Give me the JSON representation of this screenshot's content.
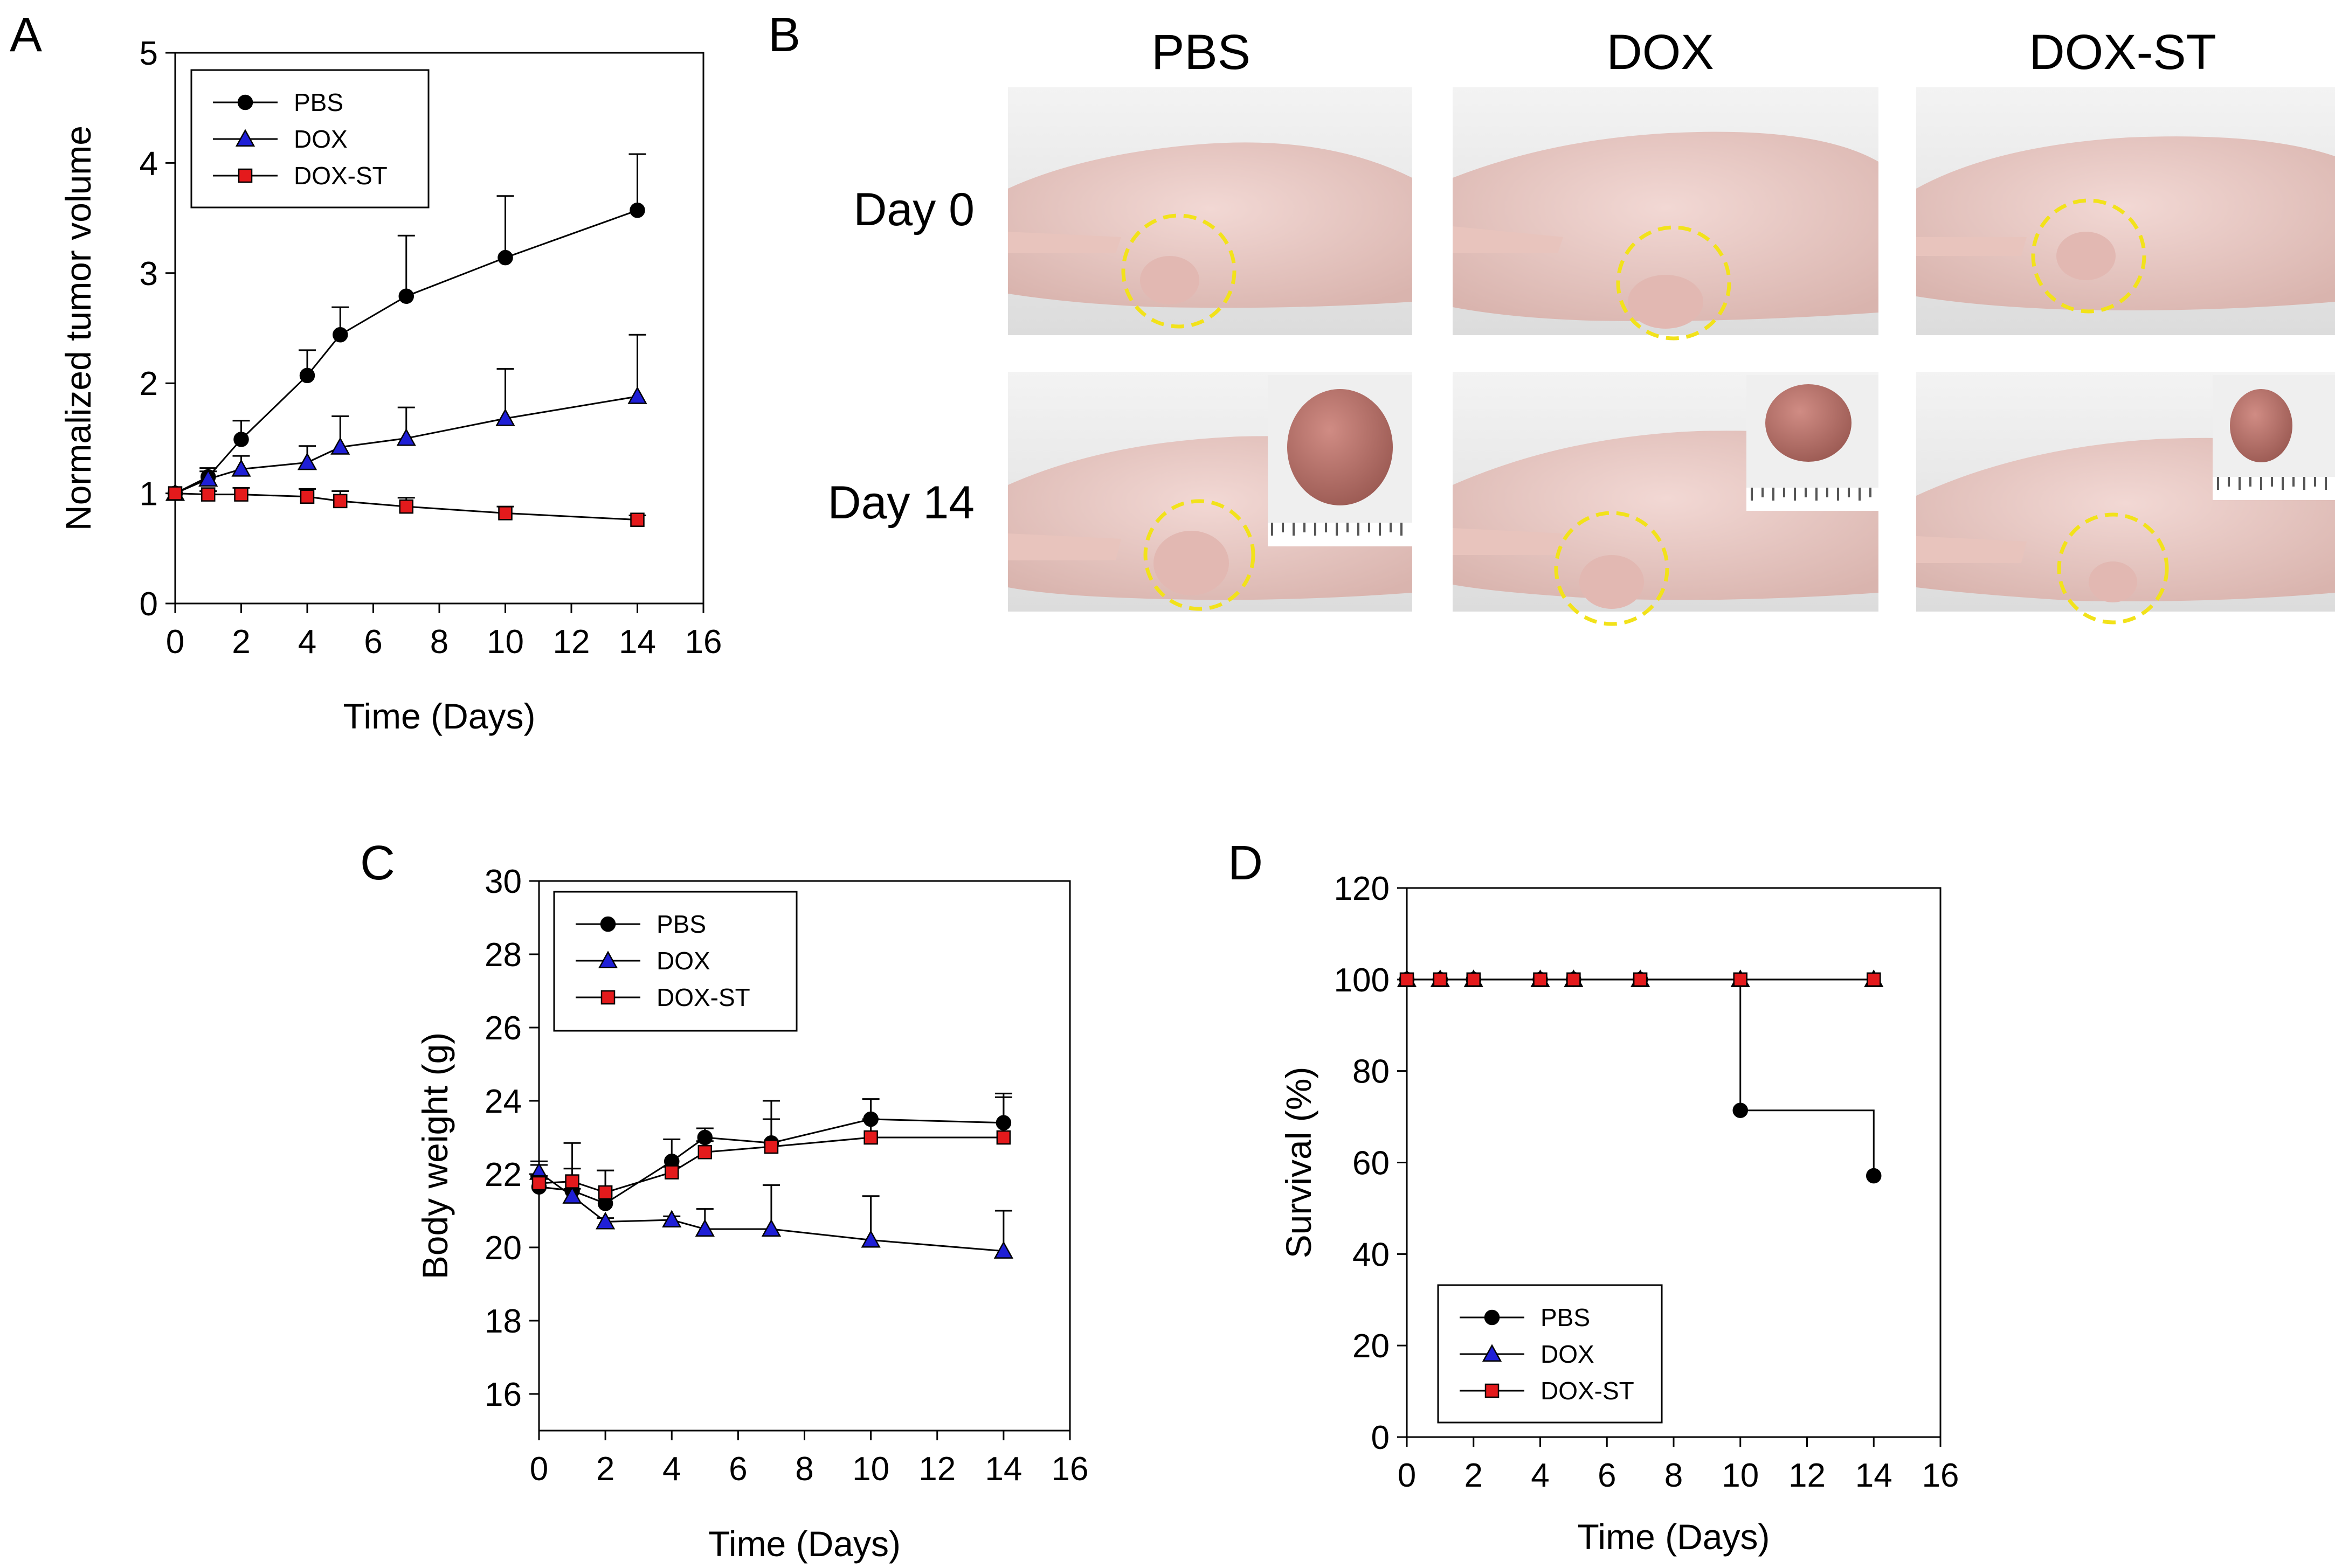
{
  "panels": {
    "A": "A",
    "B": "B",
    "C": "C",
    "D": "D"
  },
  "colors": {
    "PBS": "#000000",
    "DOX": "#1f1fd6",
    "DOX-ST": "#e41a1c",
    "circle": "#f2e21a"
  },
  "photos": {
    "columns": [
      "PBS",
      "DOX",
      "DOX-ST"
    ],
    "rows": [
      "Day 0",
      "Day 14"
    ]
  },
  "chart_data": [
    {
      "panel": "A",
      "type": "line",
      "title": "",
      "xlabel": "Time (Days)",
      "ylabel": "Normalized tumor volume",
      "xlim": [
        0,
        16
      ],
      "ylim": [
        0,
        5
      ],
      "xticks": [
        0,
        2,
        4,
        6,
        8,
        10,
        12,
        14,
        16
      ],
      "yticks": [
        0,
        1,
        2,
        3,
        4,
        5
      ],
      "legend": "top-left",
      "series": [
        {
          "name": "PBS",
          "marker": "circle",
          "x": [
            0,
            1,
            2,
            4,
            5,
            7,
            10,
            14
          ],
          "y": [
            1.0,
            1.15,
            1.49,
            2.07,
            2.44,
            2.79,
            3.14,
            3.57
          ],
          "err": [
            0.0,
            0.08,
            0.17,
            0.23,
            0.25,
            0.55,
            0.56,
            0.51
          ]
        },
        {
          "name": "DOX",
          "marker": "triangle",
          "x": [
            0,
            1,
            2,
            4,
            5,
            7,
            10,
            14
          ],
          "y": [
            1.0,
            1.13,
            1.22,
            1.28,
            1.42,
            1.5,
            1.68,
            1.88
          ],
          "err": [
            0.0,
            0.07,
            0.12,
            0.15,
            0.28,
            0.28,
            0.45,
            0.56
          ]
        },
        {
          "name": "DOX-ST",
          "marker": "square",
          "x": [
            0,
            1,
            2,
            4,
            5,
            7,
            10,
            14
          ],
          "y": [
            1.0,
            0.99,
            0.99,
            0.97,
            0.93,
            0.88,
            0.82,
            0.76
          ],
          "err": [
            0.0,
            0.03,
            0.06,
            0.07,
            0.09,
            0.08,
            0.06,
            0.04
          ]
        }
      ]
    },
    {
      "panel": "C",
      "type": "line",
      "title": "",
      "xlabel": "Time (Days)",
      "ylabel": "Body weight (g)",
      "xlim": [
        0,
        16
      ],
      "ylim": [
        15,
        30
      ],
      "xticks": [
        0,
        2,
        4,
        6,
        8,
        10,
        12,
        14,
        16
      ],
      "yticks": [
        16,
        18,
        20,
        22,
        24,
        26,
        28,
        30
      ],
      "legend": "top-left",
      "series": [
        {
          "name": "PBS",
          "marker": "circle",
          "x": [
            0,
            1,
            2,
            4,
            5,
            7,
            10,
            14
          ],
          "y": [
            21.65,
            21.55,
            21.2,
            22.35,
            23.0,
            22.85,
            23.5,
            23.4
          ],
          "err": [
            0.6,
            0.6,
            0.9,
            0.6,
            0.25,
            1.15,
            0.55,
            0.8
          ]
        },
        {
          "name": "DOX",
          "marker": "triangle",
          "x": [
            0,
            1,
            2,
            4,
            5,
            7,
            10,
            14
          ],
          "y": [
            22.05,
            21.4,
            20.7,
            20.75,
            20.5,
            20.5,
            20.2,
            19.9
          ],
          "err": [
            0.3,
            0.2,
            0.1,
            0.1,
            0.55,
            1.2,
            1.2,
            1.1
          ]
        },
        {
          "name": "DOX-ST",
          "marker": "square",
          "x": [
            0,
            1,
            2,
            4,
            5,
            7,
            10,
            14
          ],
          "y": [
            21.75,
            21.8,
            21.5,
            22.05,
            22.6,
            22.75,
            23.0,
            23.0
          ],
          "err": [
            0.2,
            1.05,
            0.6,
            0.15,
            0.3,
            0.75,
            0.5,
            1.1
          ]
        }
      ]
    },
    {
      "panel": "D",
      "type": "line",
      "title": "",
      "xlabel": "Time (Days)",
      "ylabel": "Survival (%)",
      "xlim": [
        0,
        16
      ],
      "ylim": [
        0,
        120
      ],
      "xticks": [
        0,
        2,
        4,
        6,
        8,
        10,
        12,
        14,
        16
      ],
      "yticks": [
        0,
        20,
        40,
        60,
        80,
        100,
        120
      ],
      "legend": "bottom-left",
      "series": [
        {
          "name": "PBS",
          "marker": "circle",
          "step": true,
          "x": [
            0,
            1,
            2,
            4,
            5,
            7,
            10,
            14
          ],
          "y": [
            100,
            100,
            100,
            100,
            100,
            100,
            71.4,
            57.1
          ]
        },
        {
          "name": "DOX",
          "marker": "triangle",
          "step": true,
          "x": [
            0,
            1,
            2,
            4,
            5,
            7,
            10,
            14
          ],
          "y": [
            100,
            100,
            100,
            100,
            100,
            100,
            100,
            100
          ]
        },
        {
          "name": "DOX-ST",
          "marker": "square",
          "step": true,
          "x": [
            0,
            1,
            2,
            4,
            5,
            7,
            10,
            14
          ],
          "y": [
            100,
            100,
            100,
            100,
            100,
            100,
            100,
            100
          ]
        }
      ]
    }
  ]
}
